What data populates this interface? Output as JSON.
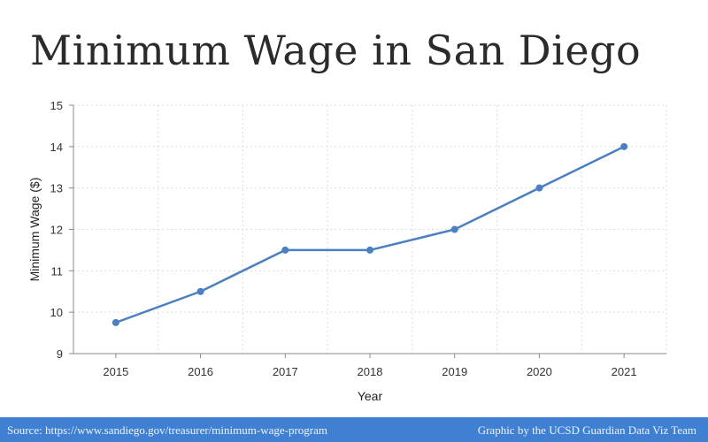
{
  "title": "Minimum Wage in San Diego",
  "footer": {
    "source": "Source: https://www.sandiego.gov/treasurer/minimum-wage-program",
    "credit": "Graphic by the UCSD Guardian Data Viz Team"
  },
  "colors": {
    "line": "#4a7fc1",
    "footer_bg": "#3f80d2"
  },
  "chart_data": {
    "type": "line",
    "title": "Minimum Wage in San Diego",
    "xlabel": "Year",
    "ylabel": "Minimum Wage ($)",
    "categories": [
      "2015",
      "2016",
      "2017",
      "2018",
      "2019",
      "2020",
      "2021"
    ],
    "values": [
      9.75,
      10.5,
      11.5,
      11.5,
      12,
      13,
      14
    ],
    "ylim": [
      9,
      15
    ],
    "yticks": [
      9,
      10,
      11,
      12,
      13,
      14,
      15
    ],
    "grid": true,
    "legend": null
  }
}
